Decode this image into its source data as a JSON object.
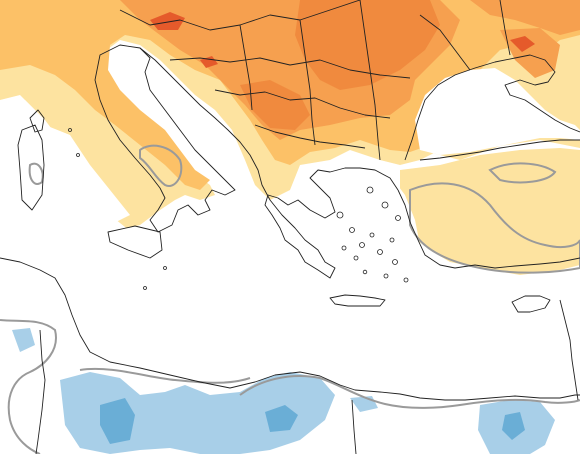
{
  "map": {
    "type": "weather-anomaly-map",
    "palette": {
      "land_base": "#ffffff",
      "sea": "#ffffff",
      "warm_light": "#fde3a0",
      "warm_mid": "#fcc167",
      "warm_strong": "#f6a04f",
      "warm_stronger": "#f08a3e",
      "warm_max": "#e55a2b",
      "cool_light": "#a8cfe8",
      "cool_mid": "#6aaed6",
      "contour": "#9a9a9a",
      "border": "#222222"
    },
    "legend": null
  }
}
